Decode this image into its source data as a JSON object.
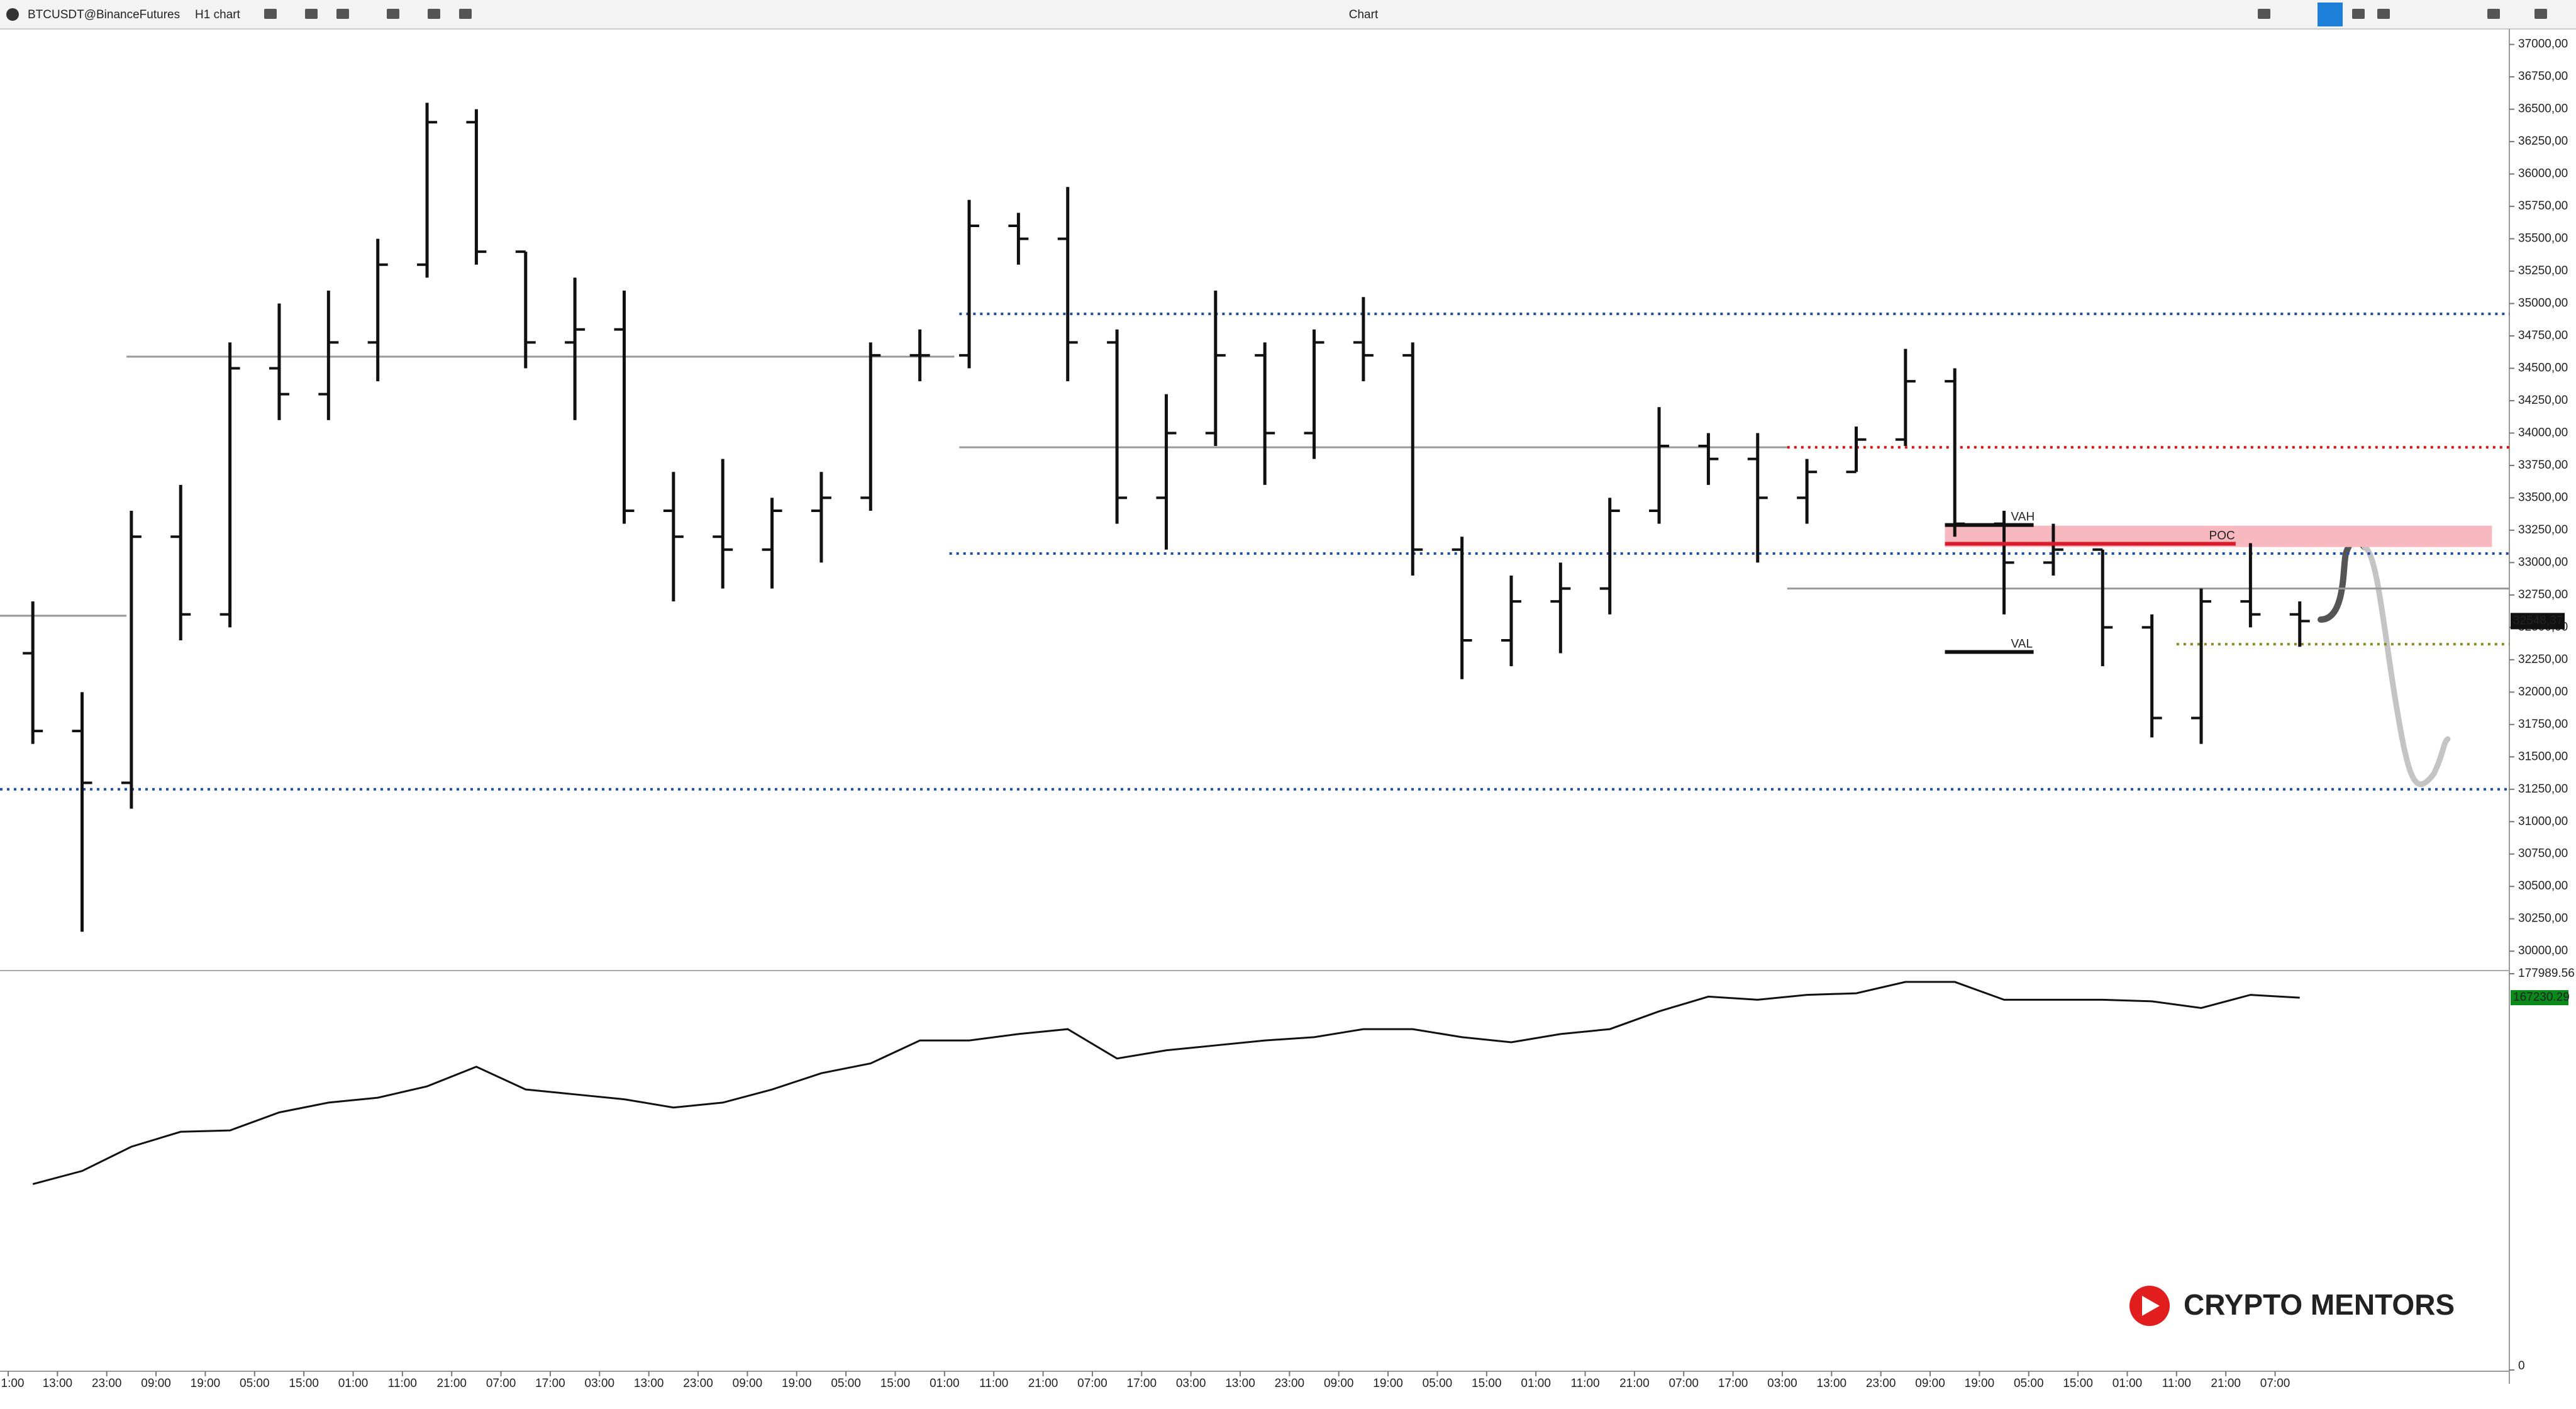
{
  "toolbar": {
    "symbol": "BTCUSDT@BinanceFutures",
    "timeframe": "H1 chart",
    "window_title": "Chart"
  },
  "watermark": "CRYPTO MENTORS",
  "chart_data": {
    "type": "ohlc",
    "categories": [
      "1:00",
      "13:00",
      "23:00",
      "09:00",
      "19:00",
      "05:00",
      "15:00",
      "01:00",
      "11:00",
      "21:00",
      "07:00",
      "17:00",
      "03:00",
      "13:00",
      "23:00",
      "09:00",
      "19:00",
      "05:00",
      "15:00",
      "01:00",
      "11:00",
      "21:00",
      "07:00",
      "17:00",
      "03:00",
      "13:00",
      "23:00",
      "09:00",
      "19:00",
      "05:00",
      "15:00",
      "01:00",
      "11:00",
      "21:00",
      "07:00",
      "17:00",
      "03:00",
      "13:00",
      "23:00",
      "09:00",
      "19:00",
      "05:00",
      "15:00",
      "01:00",
      "11:00",
      "21:00",
      "07:00"
    ],
    "open": [
      32300,
      31700,
      31300,
      33200,
      32600,
      34500,
      34300,
      34700,
      35300,
      36400,
      35400,
      34700,
      34800,
      33400,
      33200,
      33100,
      33400,
      33500,
      34600,
      34600,
      35600,
      35500,
      34700,
      33500,
      34000,
      34600,
      34000,
      34700,
      34600,
      33100,
      32400,
      32700,
      32800,
      33400,
      33900,
      33800,
      33500,
      33700,
      33950,
      34400,
      33300,
      33000,
      33100,
      32500,
      31800,
      32700,
      32600
    ],
    "high": [
      32700,
      32000,
      33400,
      33600,
      34700,
      35000,
      35100,
      35500,
      36550,
      36500,
      35400,
      35200,
      35100,
      33700,
      33800,
      33500,
      33700,
      34700,
      34800,
      35800,
      35700,
      35900,
      34800,
      34300,
      35100,
      34700,
      34800,
      35050,
      34700,
      33200,
      32900,
      33000,
      33500,
      34200,
      34000,
      34000,
      33800,
      34050,
      34650,
      34500,
      33400,
      33300,
      33100,
      32600,
      32800,
      33150,
      32700
    ],
    "low": [
      31600,
      30150,
      31100,
      32400,
      32500,
      34100,
      34100,
      34400,
      35200,
      35300,
      34500,
      34100,
      33300,
      32700,
      32800,
      32800,
      33000,
      33400,
      34400,
      34500,
      35300,
      34400,
      33300,
      33100,
      33900,
      33600,
      33800,
      34400,
      32900,
      32100,
      32200,
      32300,
      32600,
      33300,
      33600,
      33000,
      33300,
      33700,
      33900,
      33200,
      32600,
      32900,
      32200,
      31650,
      31600,
      32500,
      32350
    ],
    "close": [
      31700,
      31300,
      33200,
      32600,
      34500,
      34300,
      34700,
      35300,
      36400,
      35400,
      34700,
      34800,
      33400,
      33200,
      33100,
      33400,
      33500,
      34600,
      34600,
      35600,
      35500,
      34700,
      33500,
      34000,
      34600,
      34000,
      34700,
      34600,
      33100,
      32400,
      32700,
      32800,
      33400,
      33900,
      33800,
      33500,
      33700,
      33950,
      34400,
      33300,
      33000,
      33100,
      32500,
      31800,
      32700,
      32600,
      32548.37
    ],
    "ylim": [
      29860,
      37115
    ],
    "yticks": [
      {
        "value": 30000,
        "label": "30000,00"
      },
      {
        "value": 30250,
        "label": "30250,00"
      },
      {
        "value": 30500,
        "label": "30500,00"
      },
      {
        "value": 30750,
        "label": "30750,00"
      },
      {
        "value": 31000,
        "label": "31000,00"
      },
      {
        "value": 31250,
        "label": "31250,00"
      },
      {
        "value": 31500,
        "label": "31500,00"
      },
      {
        "value": 31750,
        "label": "31750,00"
      },
      {
        "value": 32000,
        "label": "32000,00"
      },
      {
        "value": 32250,
        "label": "32250,00"
      },
      {
        "value": 32500,
        "label": "32500,00"
      },
      {
        "value": 32750,
        "label": "32750,00"
      },
      {
        "value": 33000,
        "label": "33000,00"
      },
      {
        "value": 33250,
        "label": "33250,00"
      },
      {
        "value": 33500,
        "label": "33500,00"
      },
      {
        "value": 33750,
        "label": "33750,00"
      },
      {
        "value": 34000,
        "label": "34000,00"
      },
      {
        "value": 34250,
        "label": "34250,00"
      },
      {
        "value": 34500,
        "label": "34500,00"
      },
      {
        "value": 34750,
        "label": "34750,00"
      },
      {
        "value": 35000,
        "label": "35000,00"
      },
      {
        "value": 35250,
        "label": "35250,00"
      },
      {
        "value": 35500,
        "label": "35500,00"
      },
      {
        "value": 35750,
        "label": "35750,00"
      },
      {
        "value": 36000,
        "label": "36000,00"
      },
      {
        "value": 36250,
        "label": "36250,00"
      },
      {
        "value": 36500,
        "label": "36500,00"
      },
      {
        "value": 36750,
        "label": "36750,00"
      },
      {
        "value": 37000,
        "label": "37000,00"
      }
    ],
    "color": "#111111",
    "last_price": {
      "value": 32548.37,
      "label": "32548,37"
    },
    "levels": [
      {
        "value": 32590,
        "from": -0.17,
        "to": 2.4,
        "color": "#999999",
        "style": "solid"
      },
      {
        "value": 34590,
        "from": 2.4,
        "to": 19.2,
        "color": "#999999",
        "style": "solid"
      },
      {
        "value": 33890,
        "from": 19.3,
        "to": 36.1,
        "color": "#999999",
        "style": "solid"
      },
      {
        "value": 32800,
        "from": 36.1,
        "to": 50.8,
        "color": "#999999",
        "style": "solid"
      },
      {
        "value": 34920,
        "from": 19.3,
        "to": 50.8,
        "color": "#1f4fa8",
        "style": "dotted"
      },
      {
        "value": 33070,
        "from": 19.1,
        "to": 50.8,
        "color": "#1f4fa8",
        "style": "dotted"
      },
      {
        "value": 31250,
        "from": -0.2,
        "to": 50.8,
        "color": "#1f4fa8",
        "style": "dotted"
      },
      {
        "value": 33890,
        "from": 36.1,
        "to": 50.8,
        "color": "#e01010",
        "style": "dotted"
      },
      {
        "value": 32370,
        "from": 44,
        "to": 50.8,
        "color": "#8a8a20",
        "style": "dotted"
      }
    ],
    "zone": {
      "low": 33120,
      "high": 33285,
      "from": 39.3,
      "to": 50.4,
      "color": "#f7b9bf"
    },
    "profile_levels": [
      {
        "name": "VAH",
        "value": 33290,
        "from": 39.3,
        "to": 41.1,
        "color": "#111111"
      },
      {
        "name": "POC",
        "value": 33145,
        "from": 39.3,
        "to": 45.2,
        "color": "#d81c2c"
      },
      {
        "name": "VAL",
        "value": 32310,
        "from": 39.3,
        "to": 41.1,
        "color": "#111111"
      }
    ],
    "indicator": {
      "type": "line",
      "color": "#111111",
      "values": [
        83500,
        89400,
        100300,
        107000,
        107600,
        115700,
        120100,
        122300,
        127400,
        136200,
        126000,
        123800,
        121600,
        117900,
        120100,
        126000,
        133300,
        137700,
        148000,
        148000,
        150900,
        153100,
        139900,
        143600,
        145800,
        148000,
        149500,
        153100,
        153100,
        149500,
        147200,
        150900,
        153100,
        161100,
        167700,
        166300,
        168500,
        169200,
        174300,
        174300,
        166300,
        166300,
        166300,
        165600,
        162600,
        168500,
        167230.29
      ],
      "ylim": [
        0,
        177989.56
      ],
      "yticks": [
        0,
        177989.56
      ],
      "last_value": 167230.29
    }
  }
}
